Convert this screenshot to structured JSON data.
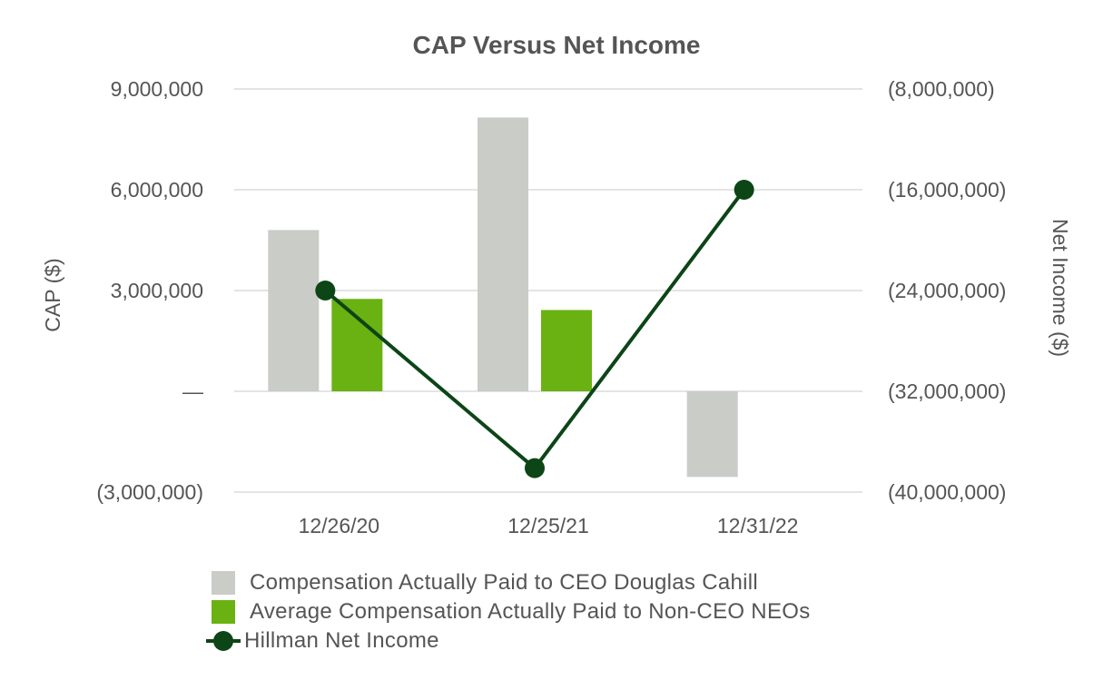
{
  "chart_data": {
    "type": "bar+line",
    "title": "CAP Versus Net Income",
    "categories": [
      "12/26/20",
      "12/25/21",
      "12/31/22"
    ],
    "left_axis": {
      "label": "CAP ($)",
      "range": [
        -3000000,
        9000000
      ],
      "ticks": [
        -3000000,
        0,
        3000000,
        6000000,
        9000000
      ],
      "tick_labels": [
        "(3,000,000)",
        "—",
        "3,000,000",
        "6,000,000",
        "9,000,000"
      ]
    },
    "right_axis": {
      "label": "Net Income ($)",
      "range": [
        -40000000,
        -8000000
      ],
      "ticks": [
        -40000000,
        -32000000,
        -24000000,
        -16000000,
        -8000000
      ],
      "tick_labels": [
        "(40,000,000)",
        "(32,000,000)",
        "(24,000,000)",
        "(16,000,000)",
        "(8,000,000)"
      ]
    },
    "series": [
      {
        "name": "Compensation Actually Paid to CEO Douglas Cahill",
        "kind": "bar",
        "axis": "left",
        "color": "#c9ccc7",
        "values": [
          4800000,
          8150000,
          -2550000
        ]
      },
      {
        "name": "Average Compensation Actually Paid to Non-CEO NEOs",
        "kind": "bar",
        "axis": "left",
        "color": "#69b212",
        "values": [
          2750000,
          2420000,
          null
        ]
      },
      {
        "name": "Hillman Net Income",
        "kind": "line",
        "axis": "right",
        "color": "#0c4516",
        "values": [
          -24000000,
          -38100000,
          -16000000
        ]
      }
    ],
    "grid": true,
    "legend_position": "bottom"
  }
}
